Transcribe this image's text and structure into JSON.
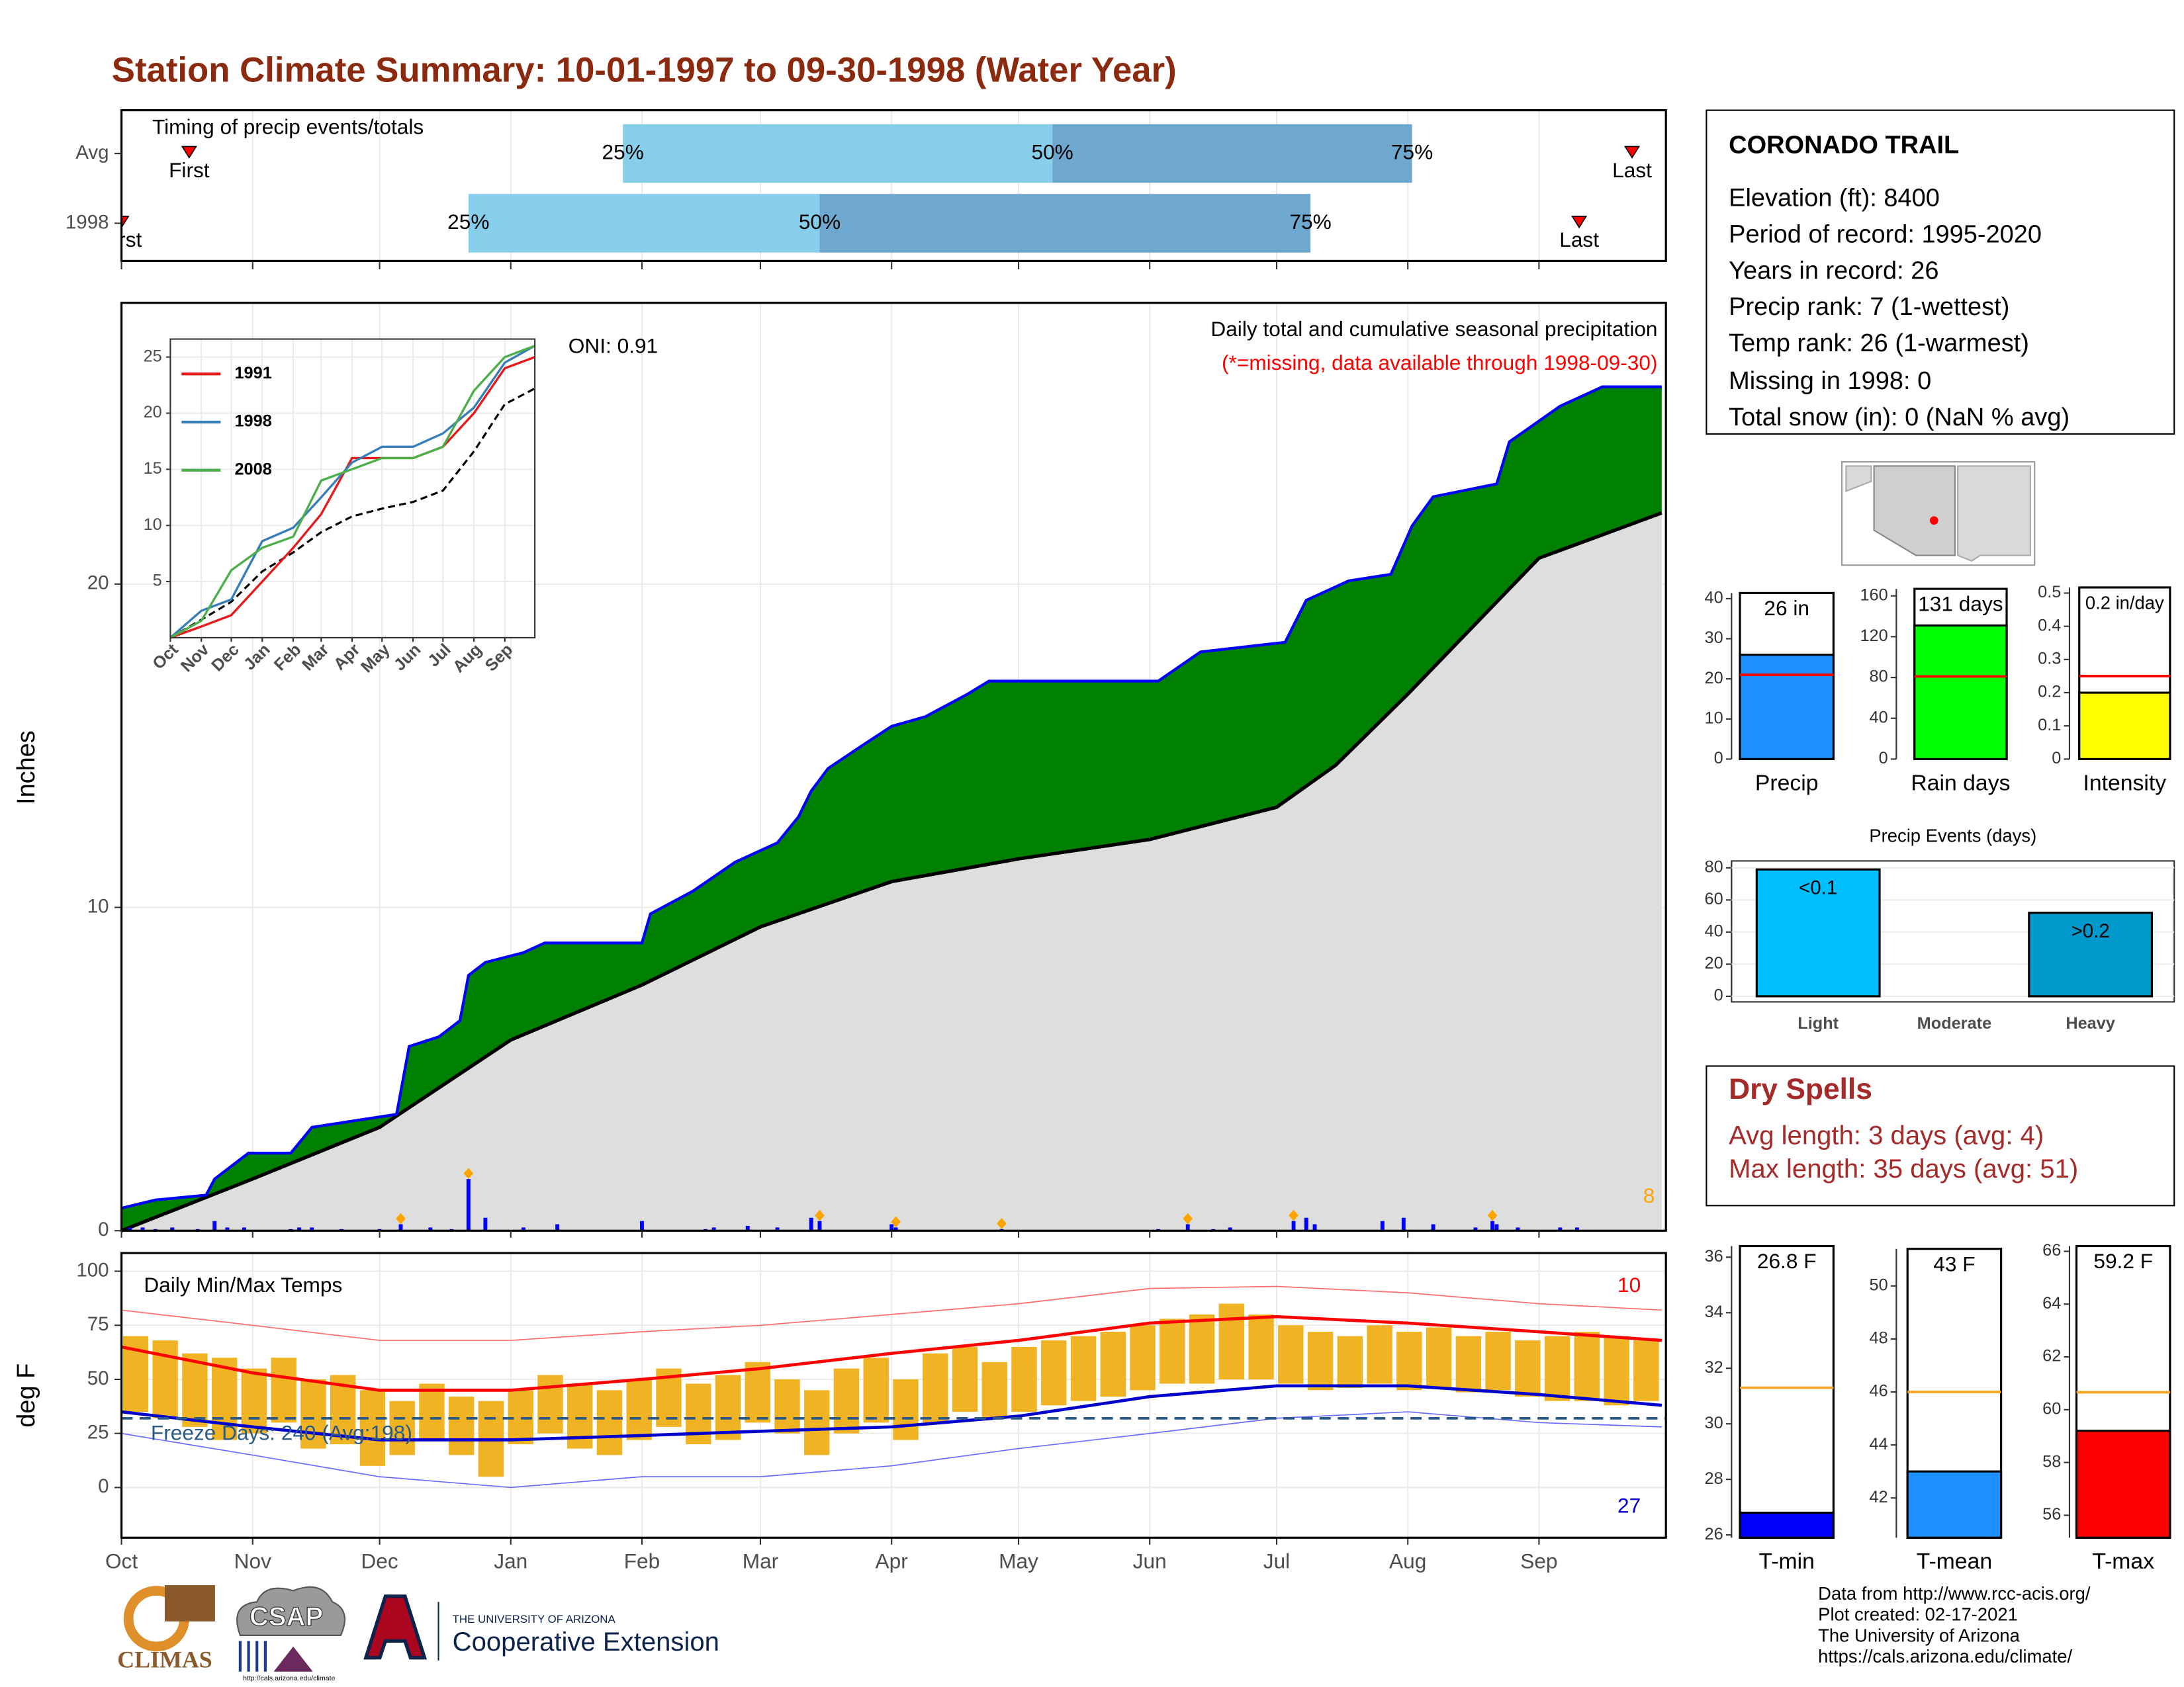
{
  "title": "Station Climate Summary: 10-01-1997 to 09-30-1998 (Water Year)",
  "station": {
    "name": "CORONADO TRAIL",
    "lines": [
      "Elevation (ft): 8400",
      "Period of record: 1995-2020",
      "Years in record: 26",
      "Precip rank: 7 (1-wettest)",
      "Temp rank: 26 (1-warmest)",
      "Missing in 1998: 0",
      "Total snow (in): 0 (NaN % avg)"
    ]
  },
  "dry_spells": {
    "title": "Dry Spells",
    "lines": [
      "Avg length: 3 days (avg: 4)",
      "Max length: 35 days (avg: 51)"
    ]
  },
  "footer": [
    "Data from http://www.rcc-acis.org/",
    "Plot created: 02-17-2021",
    "The University of Arizona",
    "https://cals.arizona.edu/climate/"
  ],
  "logos": [
    "CLIMAS",
    "CSAP",
    "http://cals.arizona.edu/climate",
    "THE UNIVERSITY OF ARIZONA",
    "Cooperative Extension"
  ],
  "chart_data": [
    {
      "type": "timeline",
      "annotation": "Timing of precip events/totals",
      "categories": [
        "Avg",
        "1998"
      ],
      "values": [
        [
          16,
          118.5,
          220,
          305,
          357
        ],
        [
          0,
          82,
          165,
          281,
          344.5
        ]
      ],
      "marker_labels": [
        "First",
        "25%",
        "50%",
        "75%",
        "Last"
      ],
      "colors": [
        "#87ceeb",
        "#6fa8cf"
      ],
      "marker_color": "#ff0000"
    },
    {
      "type": "area",
      "ylabel": "Inches",
      "title": "Daily total and cumulative seasonal precipitation",
      "subtitle": "(*=missing, data available through 1998-09-30)",
      "annotation": "ONI: 0.91",
      "heavy_count": 8,
      "ylim": [
        0,
        28.7
      ],
      "yticks": [
        0,
        10,
        20
      ],
      "grid": true,
      "cumulative": {
        "color": "#008000",
        "line_color": "#0000ff",
        "x": [
          0,
          8,
          20,
          22,
          30,
          40,
          45,
          55,
          65,
          68,
          75,
          80,
          82,
          86,
          95,
          100,
          123,
          125,
          135,
          145,
          155,
          160,
          163,
          167,
          175,
          182,
          190,
          200,
          205,
          245,
          255,
          275,
          280,
          290,
          300,
          305,
          310,
          325,
          328,
          340,
          350,
          364
        ],
        "values": [
          0.7,
          0.95,
          1.1,
          1.6,
          2.4,
          2.4,
          3.2,
          3.4,
          3.6,
          5.7,
          6.0,
          6.5,
          7.9,
          8.3,
          8.6,
          8.9,
          8.9,
          9.8,
          10.5,
          11.4,
          12.0,
          12.8,
          13.6,
          14.3,
          15.0,
          15.6,
          15.9,
          16.6,
          17.0,
          17.0,
          17.9,
          18.2,
          19.5,
          20.1,
          20.3,
          21.8,
          22.7,
          23.1,
          24.4,
          25.5,
          26.1,
          26.1
        ]
      },
      "average": {
        "color": "#dedede",
        "line_color": "#000000",
        "x": [
          0,
          31,
          61,
          92,
          123,
          151,
          182,
          212,
          243,
          273,
          287,
          304,
          335,
          364
        ],
        "values": [
          0,
          1.6,
          3.2,
          5.9,
          7.6,
          9.4,
          10.8,
          11.5,
          12.1,
          13.1,
          14.4,
          16.6,
          20.8,
          22.2
        ]
      },
      "daily": {
        "color": "#0000ff",
        "heavy_color": "#ffa500",
        "x": [
          2,
          5,
          8,
          12,
          18,
          22,
          25,
          29,
          40,
          42,
          45,
          52,
          61,
          66,
          73,
          78,
          82,
          86,
          95,
          103,
          123,
          138,
          140,
          148,
          155,
          163,
          165,
          182,
          183,
          208,
          245,
          252,
          258,
          262,
          277,
          280,
          282,
          298,
          303,
          310,
          320,
          324,
          325,
          330,
          340,
          344
        ],
        "values": [
          0.1,
          0.1,
          0.05,
          0.1,
          0.05,
          0.3,
          0.1,
          0.1,
          0.05,
          0.1,
          0.1,
          0.05,
          0.05,
          0.2,
          0.1,
          0.05,
          1.6,
          0.4,
          0.1,
          0.2,
          0.3,
          0.05,
          0.1,
          0.15,
          0.1,
          0.4,
          0.3,
          0.2,
          0.1,
          0.05,
          0.05,
          0.2,
          0.05,
          0.1,
          0.3,
          0.4,
          0.2,
          0.3,
          0.4,
          0.2,
          0.1,
          0.3,
          0.2,
          0.1,
          0.1,
          0.1
        ],
        "heavy": [
          false,
          false,
          false,
          false,
          false,
          false,
          false,
          false,
          false,
          false,
          false,
          false,
          false,
          true,
          false,
          false,
          true,
          false,
          false,
          false,
          false,
          false,
          false,
          false,
          false,
          false,
          true,
          false,
          true,
          true,
          false,
          true,
          false,
          false,
          true,
          false,
          false,
          false,
          false,
          false,
          false,
          true,
          false,
          false,
          false,
          false
        ]
      }
    },
    {
      "type": "line",
      "ylim": [
        0,
        26.6
      ],
      "yticks": [
        5,
        10,
        15,
        20,
        25
      ],
      "xlim": [
        0,
        365
      ],
      "xticks": [
        {
          "value": 0,
          "label": "Oct"
        },
        {
          "value": 31,
          "label": "Nov"
        },
        {
          "value": 61,
          "label": "Dec"
        },
        {
          "value": 92,
          "label": "Jan"
        },
        {
          "value": 123,
          "label": "Feb"
        },
        {
          "value": 151,
          "label": "Mar"
        },
        {
          "value": 182,
          "label": "Apr"
        },
        {
          "value": 212,
          "label": "May"
        },
        {
          "value": 243,
          "label": "Jun"
        },
        {
          "value": 273,
          "label": "Jul"
        },
        {
          "value": 304,
          "label": "Aug"
        },
        {
          "value": 335,
          "label": "Sep"
        }
      ],
      "x": [
        0,
        31,
        61,
        92,
        123,
        151,
        182,
        212,
        243,
        273,
        304,
        335,
        365
      ],
      "series": [
        {
          "name": "1991",
          "color": "#e41a1c",
          "values": [
            0,
            1,
            2,
            5,
            8,
            11,
            16,
            16,
            16,
            17,
            20,
            24,
            25
          ]
        },
        {
          "name": "1998",
          "color": "#377eb8",
          "values": [
            0,
            2.4,
            3.4,
            8.6,
            9.8,
            12.5,
            15.6,
            17,
            17,
            18.2,
            20.5,
            24.5,
            26
          ]
        },
        {
          "name": "2008",
          "color": "#4daf4a",
          "values": [
            0,
            1.5,
            6,
            8,
            9,
            14,
            15,
            16,
            16,
            17,
            22,
            25,
            26
          ]
        }
      ],
      "average": [
        0,
        1.6,
        3.2,
        5.9,
        7.6,
        9.4,
        10.8,
        11.5,
        12.1,
        13.1,
        16.6,
        20.8,
        22.2
      ]
    },
    {
      "type": "range",
      "title": "Daily Min/Max Temps",
      "ylabel": "deg F",
      "annotation": "Freeze Days: 240 (Avg:198)",
      "record_high_count": 10,
      "record_low_count": 27,
      "freeze_line": 32,
      "color": "#f0b323",
      "xlim": [
        0,
        365
      ],
      "xticks": [
        {
          "value": 0,
          "label": "Oct"
        },
        {
          "value": 31,
          "label": "Nov"
        },
        {
          "value": 61,
          "label": "Dec"
        },
        {
          "value": 92,
          "label": "Jan"
        },
        {
          "value": 123,
          "label": "Feb"
        },
        {
          "value": 151,
          "label": "Mar"
        },
        {
          "value": 182,
          "label": "Apr"
        },
        {
          "value": 212,
          "label": "May"
        },
        {
          "value": 243,
          "label": "Jun"
        },
        {
          "value": 273,
          "label": "Jul"
        },
        {
          "value": 304,
          "label": "Aug"
        },
        {
          "value": 335,
          "label": "Sep"
        }
      ],
      "ylim": [
        -23.2,
        108.4
      ],
      "yticks": [
        0,
        25,
        50,
        75,
        100
      ],
      "x": [
        0,
        7,
        14,
        21,
        28,
        35,
        42,
        49,
        56,
        63,
        70,
        77,
        84,
        91,
        98,
        105,
        112,
        119,
        126,
        133,
        140,
        147,
        154,
        161,
        168,
        175,
        182,
        189,
        196,
        203,
        210,
        217,
        224,
        231,
        238,
        245,
        252,
        259,
        266,
        273,
        280,
        287,
        294,
        301,
        308,
        315,
        322,
        329,
        336,
        343,
        350,
        357
      ],
      "max": [
        70,
        68,
        62,
        60,
        55,
        60,
        50,
        52,
        45,
        40,
        48,
        42,
        40,
        45,
        52,
        48,
        45,
        50,
        55,
        48,
        52,
        58,
        50,
        45,
        55,
        60,
        50,
        62,
        65,
        58,
        65,
        68,
        70,
        72,
        75,
        78,
        80,
        85,
        80,
        75,
        72,
        70,
        75,
        72,
        74,
        70,
        72,
        68,
        70,
        72,
        70,
        68
      ],
      "min": [
        35,
        32,
        28,
        22,
        25,
        30,
        18,
        20,
        10,
        15,
        22,
        15,
        5,
        20,
        25,
        18,
        15,
        22,
        28,
        20,
        22,
        30,
        25,
        15,
        25,
        30,
        22,
        30,
        35,
        32,
        35,
        38,
        40,
        42,
        45,
        48,
        48,
        50,
        50,
        48,
        45,
        46,
        48,
        45,
        46,
        44,
        45,
        42,
        40,
        40,
        38,
        40
      ],
      "normals": {
        "x": [
          0,
          31,
          61,
          92,
          123,
          151,
          182,
          212,
          243,
          273,
          304,
          335,
          364
        ],
        "max": [
          65,
          53,
          45,
          45,
          50,
          55,
          62,
          68,
          76,
          79,
          76,
          72,
          68
        ],
        "min": [
          35,
          28,
          22,
          22,
          24,
          26,
          28,
          33,
          42,
          47,
          47,
          43,
          38
        ],
        "record_max": [
          82,
          75,
          68,
          68,
          72,
          75,
          80,
          85,
          92,
          93,
          90,
          85,
          82
        ],
        "record_min": [
          25,
          15,
          5,
          0,
          5,
          5,
          10,
          18,
          25,
          32,
          35,
          30,
          28
        ]
      }
    },
    {
      "type": "bar",
      "categories": [
        "Precip"
      ],
      "values": [
        26
      ],
      "value_labels": [
        "26 in"
      ],
      "average": 21,
      "average_color": "#ff0000",
      "colors": [
        "#1e90ff"
      ],
      "ylim": [
        0,
        41.4
      ],
      "yticks": [
        0,
        10,
        20,
        30,
        40
      ]
    },
    {
      "type": "bar",
      "categories": [
        "Rain days"
      ],
      "values": [
        131
      ],
      "value_labels": [
        "131 days"
      ],
      "average": 81,
      "average_color": "#ff0000",
      "colors": [
        "#00ff00"
      ],
      "ylim": [
        0,
        166.9
      ],
      "yticks": [
        0,
        40,
        80,
        120,
        160
      ]
    },
    {
      "type": "bar",
      "categories": [
        "Intensity"
      ],
      "values": [
        0.2
      ],
      "value_labels": [
        "0.2 in/day"
      ],
      "average": 0.25,
      "average_color": "#ff0000",
      "colors": [
        "#ffff00"
      ],
      "ylim": [
        0,
        0.517
      ],
      "yticks": [
        0.0,
        0.1,
        0.2,
        0.3,
        0.4,
        0.5
      ]
    },
    {
      "type": "bar",
      "title": "Precip Events (days)",
      "categories": [
        "Light",
        "Moderate",
        "Heavy"
      ],
      "values": [
        79,
        0,
        52
      ],
      "bar_labels": [
        "<0.1",
        null,
        ">0.2"
      ],
      "colors": [
        "#00bfff",
        "#000000",
        "#0099cc"
      ],
      "ylim": [
        0,
        84.3
      ],
      "yticks": [
        0,
        20,
        40,
        60,
        80
      ],
      "grid": true
    },
    {
      "type": "bar",
      "categories": [
        "T-min"
      ],
      "values": [
        26.8
      ],
      "value_labels": [
        "26.8 F"
      ],
      "average": 31.3,
      "average_color": "#f5a623",
      "colors": [
        "#0000ff"
      ],
      "ylim": [
        25.9,
        36.4
      ],
      "yticks": [
        26,
        28,
        30,
        32,
        34,
        36
      ]
    },
    {
      "type": "bar",
      "categories": [
        "T-mean"
      ],
      "values": [
        43
      ],
      "value_labels": [
        "43 F"
      ],
      "average": 46,
      "average_color": "#f5a623",
      "colors": [
        "#1e90ff"
      ],
      "ylim": [
        40.5,
        51.4
      ],
      "yticks": [
        42,
        44,
        46,
        48,
        50
      ]
    },
    {
      "type": "bar",
      "categories": [
        "T-max"
      ],
      "values": [
        59.2
      ],
      "value_labels": [
        "59.2 F"
      ],
      "average": 60.66,
      "average_color": "#f5a623",
      "colors": [
        "#ff0000"
      ],
      "ylim": [
        55.15,
        66.2
      ],
      "yticks": [
        56,
        58,
        60,
        62,
        64,
        66
      ]
    }
  ]
}
